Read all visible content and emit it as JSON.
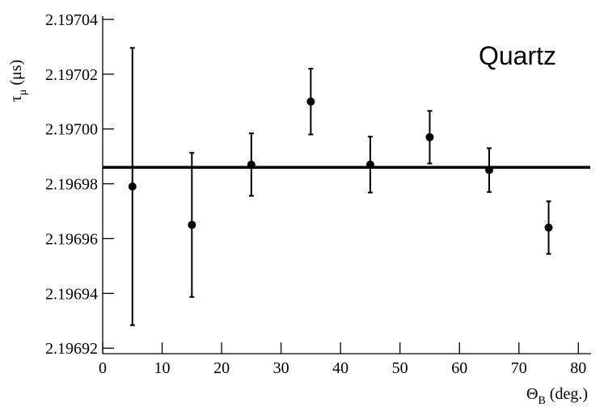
{
  "chart_data": {
    "type": "scatter",
    "title": "Quartz",
    "xlabel": "Θ",
    "xlabel_sub": "B",
    "xlabel_unit": "(deg.)",
    "ylabel": "τ",
    "ylabel_sub": "μ",
    "ylabel_unit": "(μs)",
    "x": [
      5,
      15,
      25,
      35,
      45,
      55,
      65,
      75
    ],
    "values": [
      2.196979,
      2.196965,
      2.196987,
      2.19701,
      2.196987,
      2.196997,
      2.196985,
      2.196964
    ],
    "errors": [
      5.06e-05,
      2.63e-05,
      1.14e-05,
      1.2e-05,
      1.02e-05,
      9.6e-06,
      8e-06,
      9.6e-06
    ],
    "fit": 2.196986,
    "color": "#000000",
    "xlim": [
      0,
      82
    ],
    "xticks": [
      0,
      10,
      20,
      30,
      40,
      50,
      60,
      70,
      80
    ],
    "ylim": [
      2.196918,
      2.19704
    ],
    "yticks": [
      2.19692,
      2.19694,
      2.19696,
      2.19698,
      {
        "value": 2.197,
        "label": "2.19700"
      },
      2.19702,
      2.19704
    ]
  }
}
